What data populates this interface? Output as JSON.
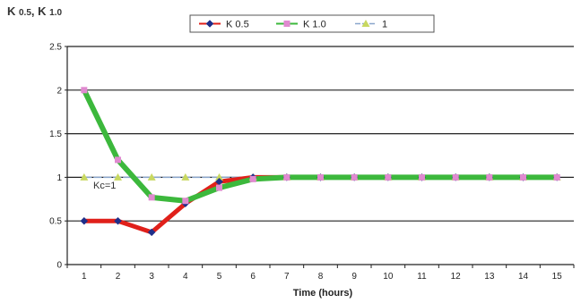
{
  "chart_data": {
    "type": "line",
    "title_parts": [
      {
        "main": "K",
        "sub": "0.5"
      },
      {
        "main": "K",
        "sub": "1.0"
      }
    ],
    "title_separator": ", ",
    "xlabel": "Time (hours)",
    "ylabel": "",
    "xlim": [
      1,
      15
    ],
    "ylim": [
      0,
      2.5
    ],
    "yticks": [
      "0",
      "0.5",
      "1",
      "1.5",
      "2",
      "2.5"
    ],
    "x": [
      1,
      2,
      3,
      4,
      5,
      6,
      7,
      8,
      9,
      10,
      11,
      12,
      13,
      14,
      15
    ],
    "grid": "horizontal",
    "legend_position": "top-center",
    "annotation": "Kc=1",
    "series": [
      {
        "name": "K 0.5",
        "marker": "diamond",
        "marker_color": "#1f2f8a",
        "line_color": "#e0201a",
        "values": [
          0.5,
          0.5,
          0.37,
          0.7,
          0.95,
          1.0,
          1.0,
          1.0,
          1.0,
          1.0,
          1.0,
          1.0,
          1.0,
          1.0,
          1.0
        ]
      },
      {
        "name": "K 1.0",
        "marker": "square",
        "marker_color": "#e08ad0",
        "line_color": "#3cb83c",
        "values": [
          2.0,
          1.2,
          0.77,
          0.73,
          0.88,
          0.98,
          1.0,
          1.0,
          1.0,
          1.0,
          1.0,
          1.0,
          1.0,
          1.0,
          1.0
        ]
      },
      {
        "name": "1",
        "marker": "triangle",
        "marker_color": "#c8d860",
        "line_color": "#8aa6cc",
        "values": [
          1,
          1,
          1,
          1,
          1,
          1,
          1,
          1,
          1,
          1,
          1,
          1,
          1,
          1,
          1
        ]
      }
    ]
  }
}
